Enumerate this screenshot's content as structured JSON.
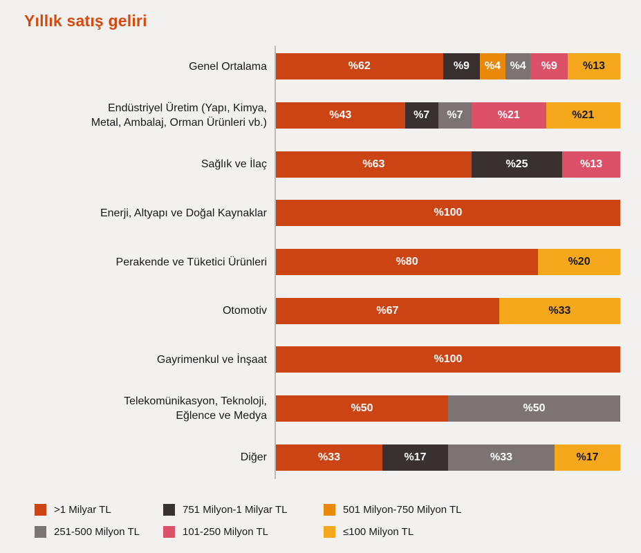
{
  "title": "Yıllık satış geliri",
  "palette": {
    "background": "#F2F1EF",
    "title_color": "#D4490D",
    "axis_color": "#BDBBB8",
    "category_text": "#1A1818",
    "series": {
      "gt1b": {
        "fill": "#CC4414",
        "text": "#FFFFFF"
      },
      "m751_1b": {
        "fill": "#393130",
        "text": "#FFFFFF"
      },
      "m501_750": {
        "fill": "#E8890C",
        "text": "#FFFFFF"
      },
      "m251_500": {
        "fill": "#7C7472",
        "text": "#FFFFFF"
      },
      "m101_250": {
        "fill": "#DB5168",
        "text": "#FFFFFF"
      },
      "lte100": {
        "fill": "#F6A81D",
        "text": "#1A1818"
      }
    }
  },
  "chart_data": {
    "type": "bar",
    "orientation": "horizontal",
    "stacked": true,
    "unit": "percent",
    "value_prefix": "%",
    "title": "Yıllık satış geliri",
    "legend_position": "bottom",
    "grid": false,
    "xlim": [
      0,
      100
    ],
    "series_names": [
      ">1 Milyar TL",
      "751 Milyon-1 Milyar TL",
      "501 Milyon-750 Milyon TL",
      "251-500 Milyon TL",
      "101-250 Milyon TL",
      "≤100 Milyon TL"
    ],
    "categories": [
      "Genel Ortalama",
      "Endüstriyel Üretim (Yapı, Kimya, Metal, Ambalaj, Orman Ürünleri vb.)",
      "Sağlık ve İlaç",
      "Enerji, Altyapı ve Doğal Kaynaklar",
      "Perakende ve Tüketici Ürünleri",
      "Otomotiv",
      "Gayrimenkul ve İnşaat",
      "Telekomünikasyon, Teknoloji, Eğlence ve Medya",
      "Diğer"
    ],
    "rows": [
      {
        "category": "Genel Ortalama",
        "lines": [
          "Genel Ortalama"
        ],
        "segments": [
          {
            "series": ">1 Milyar TL",
            "key": "gt1b",
            "value": 62,
            "label": "%62"
          },
          {
            "series": "751 Milyon-1 Milyar TL",
            "key": "m751_1b",
            "value": 9,
            "label": "%9"
          },
          {
            "series": "501 Milyon-750 Milyon TL",
            "key": "m501_750",
            "value": 4,
            "label": "%4"
          },
          {
            "series": "251-500 Milyon TL",
            "key": "m251_500",
            "value": 4,
            "label": "%4"
          },
          {
            "series": "101-250 Milyon TL",
            "key": "m101_250",
            "value": 9,
            "label": "%9"
          },
          {
            "series": "≤100 Milyon TL",
            "key": "lte100",
            "value": 13,
            "label": "%13"
          }
        ]
      },
      {
        "category": "Endüstriyel Üretim (Yapı, Kimya, Metal, Ambalaj, Orman Ürünleri vb.)",
        "lines": [
          "Endüstriyel Üretim (Yapı, Kimya,",
          "Metal, Ambalaj, Orman Ürünleri vb.)"
        ],
        "segments": [
          {
            "series": ">1 Milyar TL",
            "key": "gt1b",
            "value": 43,
            "label": "%43"
          },
          {
            "series": "751 Milyon-1 Milyar TL",
            "key": "m751_1b",
            "value": 7,
            "label": "%7"
          },
          {
            "series": "251-500 Milyon TL",
            "key": "m251_500",
            "value": 7,
            "label": "%7"
          },
          {
            "series": "101-250 Milyon TL",
            "key": "m101_250",
            "value": 21,
            "label": "%21"
          },
          {
            "series": "≤100 Milyon TL",
            "key": "lte100",
            "value": 21,
            "label": "%21"
          }
        ]
      },
      {
        "category": "Sağlık ve İlaç",
        "lines": [
          "Sağlık ve İlaç"
        ],
        "segments": [
          {
            "series": ">1 Milyar TL",
            "key": "gt1b",
            "value": 63,
            "label": "%63"
          },
          {
            "series": "751 Milyon-1 Milyar TL",
            "key": "m751_1b",
            "value": 25,
            "label": "%25"
          },
          {
            "series": "101-250 Milyon TL",
            "key": "m101_250",
            "value": 13,
            "label": "%13"
          }
        ]
      },
      {
        "category": "Enerji, Altyapı ve Doğal Kaynaklar",
        "lines": [
          "Enerji, Altyapı ve Doğal Kaynaklar"
        ],
        "segments": [
          {
            "series": ">1 Milyar TL",
            "key": "gt1b",
            "value": 100,
            "label": "%100"
          }
        ]
      },
      {
        "category": "Perakende ve Tüketici Ürünleri",
        "lines": [
          "Perakende ve Tüketici Ürünleri"
        ],
        "segments": [
          {
            "series": ">1 Milyar TL",
            "key": "gt1b",
            "value": 80,
            "label": "%80"
          },
          {
            "series": "≤100 Milyon TL",
            "key": "lte100",
            "value": 20,
            "label": "%20"
          }
        ]
      },
      {
        "category": "Otomotiv",
        "lines": [
          "Otomotiv"
        ],
        "segments": [
          {
            "series": ">1 Milyar TL",
            "key": "gt1b",
            "value": 67,
            "label": "%67"
          },
          {
            "series": "≤100 Milyon TL",
            "key": "lte100",
            "value": 33,
            "label": "%33"
          }
        ]
      },
      {
        "category": "Gayrimenkul ve İnşaat",
        "lines": [
          "Gayrimenkul ve İnşaat"
        ],
        "segments": [
          {
            "series": ">1 Milyar TL",
            "key": "gt1b",
            "value": 100,
            "label": "%100"
          }
        ]
      },
      {
        "category": "Telekomünikasyon, Teknoloji, Eğlence ve Medya",
        "lines": [
          "Telekomünikasyon, Teknoloji,",
          "Eğlence ve Medya"
        ],
        "segments": [
          {
            "series": ">1 Milyar TL",
            "key": "gt1b",
            "value": 50,
            "label": "%50"
          },
          {
            "series": "251-500 Milyon TL",
            "key": "m251_500",
            "value": 50,
            "label": "%50"
          }
        ]
      },
      {
        "category": "Diğer",
        "lines": [
          "Diğer"
        ],
        "segments": [
          {
            "series": ">1 Milyar TL",
            "key": "gt1b",
            "value": 33,
            "label": "%33"
          },
          {
            "series": "751 Milyon-1 Milyar TL",
            "key": "m751_1b",
            "value": 17,
            "label": "%17"
          },
          {
            "series": "251-500 Milyon TL",
            "key": "m251_500",
            "value": 33,
            "label": "%33"
          },
          {
            "series": "≤100 Milyon TL",
            "key": "lte100",
            "value": 17,
            "label": "%17"
          }
        ]
      }
    ],
    "legend": [
      {
        "label": ">1 Milyar TL",
        "key": "gt1b"
      },
      {
        "label": "751 Milyon-1 Milyar TL",
        "key": "m751_1b"
      },
      {
        "label": "501 Milyon-750 Milyon TL",
        "key": "m501_750"
      },
      {
        "label": "251-500 Milyon TL",
        "key": "m251_500"
      },
      {
        "label": "101-250 Milyon TL",
        "key": "m101_250"
      },
      {
        "label": "≤100 Milyon TL",
        "key": "lte100"
      }
    ]
  }
}
